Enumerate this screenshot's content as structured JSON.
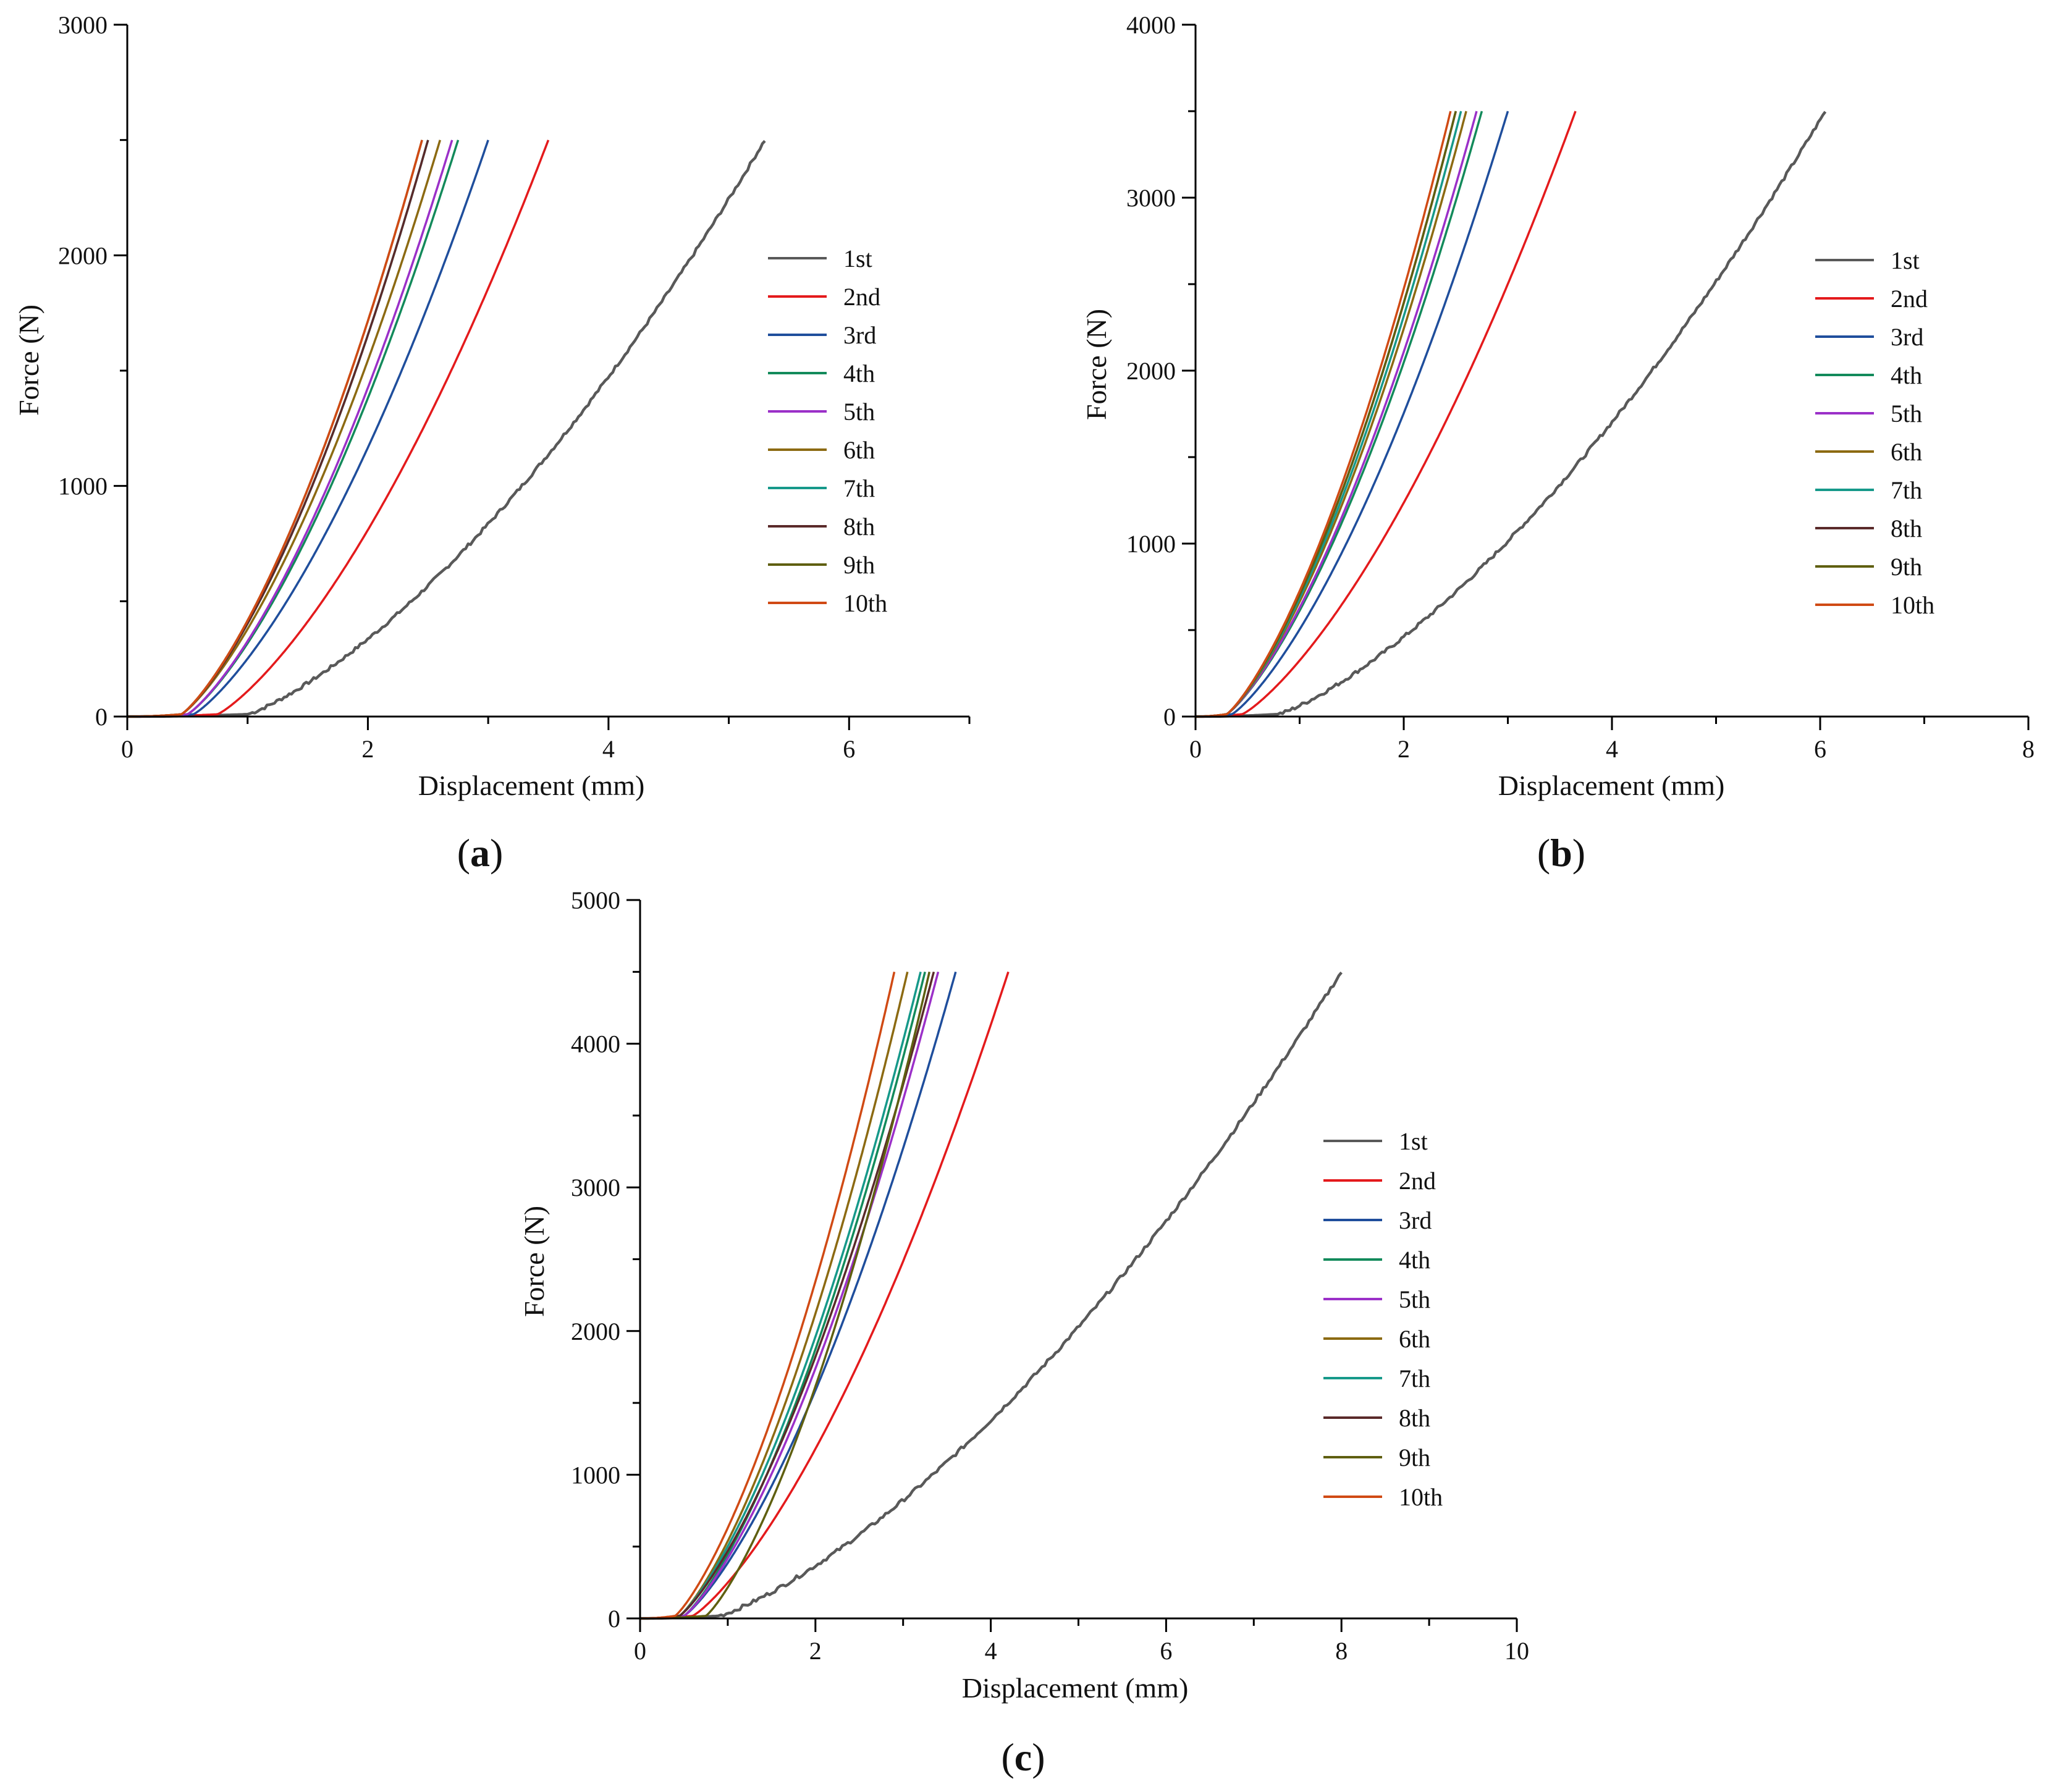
{
  "legend_labels": [
    "1st",
    "2nd",
    "3rd",
    "4th",
    "5th",
    "6th",
    "7th",
    "8th",
    "9th",
    "10th"
  ],
  "series_colors": [
    "#595959",
    "#e41a1c",
    "#1f4e9c",
    "#138a5b",
    "#9b30c8",
    "#8c6a12",
    "#16998a",
    "#5a2a2a",
    "#5f5f10",
    "#d04a14"
  ],
  "chart_data": [
    {
      "id": "a",
      "panel_label": "(a)",
      "panel_letter": "a",
      "type": "line",
      "title": "",
      "xlabel": "Displacement (mm)",
      "ylabel": "Force (N)",
      "xlim": [
        0,
        7
      ],
      "ylim": [
        0,
        3000
      ],
      "xticks": [
        0,
        2,
        4,
        6
      ],
      "yticks": [
        0,
        1000,
        2000,
        3000
      ],
      "legend_position": "right-middle",
      "series": [
        {
          "name": "1st",
          "onset": 1.0,
          "end": 5.3,
          "peak": 2500
        },
        {
          "name": "2nd",
          "onset": 0.75,
          "end": 3.5,
          "peak": 2500
        },
        {
          "name": "3rd",
          "onset": 0.55,
          "end": 3.0,
          "peak": 2500
        },
        {
          "name": "4th",
          "onset": 0.5,
          "end": 2.75,
          "peak": 2500
        },
        {
          "name": "5th",
          "onset": 0.5,
          "end": 2.7,
          "peak": 2500
        },
        {
          "name": "6th",
          "onset": 0.45,
          "end": 2.6,
          "peak": 2500
        },
        {
          "name": "7th",
          "onset": 0.45,
          "end": 2.5,
          "peak": 2500
        },
        {
          "name": "8th",
          "onset": 0.45,
          "end": 2.5,
          "peak": 2500
        },
        {
          "name": "9th",
          "onset": 0.45,
          "end": 2.45,
          "peak": 2500
        },
        {
          "name": "10th",
          "onset": 0.45,
          "end": 2.45,
          "peak": 2500
        }
      ]
    },
    {
      "id": "b",
      "panel_label": "(b)",
      "panel_letter": "b",
      "type": "line",
      "title": "",
      "xlabel": "Displacement (mm)",
      "ylabel": "Force (N)",
      "xlim": [
        0,
        8
      ],
      "ylim": [
        0,
        4000
      ],
      "xticks": [
        0,
        2,
        4,
        6,
        8
      ],
      "yticks": [
        0,
        1000,
        2000,
        3000,
        4000
      ],
      "legend_position": "right-middle",
      "series": [
        {
          "name": "1st",
          "onset": 0.8,
          "end": 6.05,
          "peak": 3500
        },
        {
          "name": "2nd",
          "onset": 0.45,
          "end": 3.65,
          "peak": 3500
        },
        {
          "name": "3rd",
          "onset": 0.35,
          "end": 3.0,
          "peak": 3500
        },
        {
          "name": "4th",
          "onset": 0.3,
          "end": 2.75,
          "peak": 3500
        },
        {
          "name": "5th",
          "onset": 0.3,
          "end": 2.7,
          "peak": 3500
        },
        {
          "name": "6th",
          "onset": 0.3,
          "end": 2.6,
          "peak": 3500
        },
        {
          "name": "7th",
          "onset": 0.3,
          "end": 2.55,
          "peak": 3500
        },
        {
          "name": "8th",
          "onset": 0.3,
          "end": 2.5,
          "peak": 3500
        },
        {
          "name": "9th",
          "onset": 0.3,
          "end": 2.5,
          "peak": 3500
        },
        {
          "name": "10th",
          "onset": 0.3,
          "end": 2.45,
          "peak": 3500
        }
      ]
    },
    {
      "id": "c",
      "panel_label": "(c)",
      "panel_letter": "c",
      "type": "line",
      "title": "",
      "xlabel": "Displacement (mm)",
      "ylabel": "Force (N)",
      "xlim": [
        0,
        10
      ],
      "ylim": [
        0,
        5000
      ],
      "xticks": [
        0,
        2,
        4,
        6,
        8,
        10
      ],
      "yticks": [
        0,
        1000,
        2000,
        3000,
        4000,
        5000
      ],
      "legend_position": "right-middle",
      "series": [
        {
          "name": "1st",
          "onset": 0.9,
          "end": 8.0,
          "peak": 4500
        },
        {
          "name": "2nd",
          "onset": 0.6,
          "end": 4.2,
          "peak": 4500
        },
        {
          "name": "3rd",
          "onset": 0.5,
          "end": 3.6,
          "peak": 4500
        },
        {
          "name": "4th",
          "onset": 0.5,
          "end": 3.25,
          "peak": 4500
        },
        {
          "name": "5th",
          "onset": 0.5,
          "end": 3.4,
          "peak": 4500
        },
        {
          "name": "6th",
          "onset": 0.45,
          "end": 3.05,
          "peak": 4500
        },
        {
          "name": "7th",
          "onset": 0.45,
          "end": 3.2,
          "peak": 4500
        },
        {
          "name": "8th",
          "onset": 0.45,
          "end": 3.35,
          "peak": 4500
        },
        {
          "name": "9th",
          "onset": 0.75,
          "end": 3.3,
          "peak": 4500
        },
        {
          "name": "10th",
          "onset": 0.4,
          "end": 2.9,
          "peak": 4500
        }
      ]
    }
  ]
}
